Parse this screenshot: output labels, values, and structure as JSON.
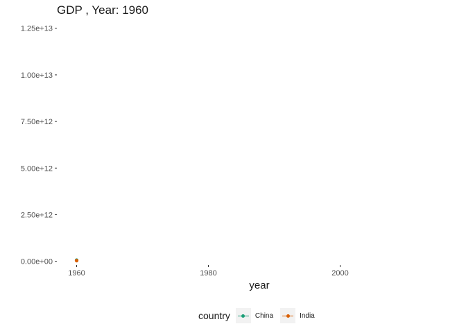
{
  "chart_data": {
    "type": "line",
    "title": "GDP , Year: 1960",
    "xlabel": "year",
    "ylabel": "",
    "xlim": [
      1957,
      2017
    ],
    "ylim": [
      -200000000000,
      12900000000000
    ],
    "x_ticks": [
      1960,
      1980,
      2000
    ],
    "x_tick_labels": [
      "1960",
      "1980",
      "2000"
    ],
    "y_ticks": [
      0,
      2500000000000,
      5000000000000,
      7500000000000,
      10000000000000,
      12500000000000
    ],
    "y_tick_labels": [
      "0.00e+00",
      "2.50e+12",
      "5.00e+12",
      "7.50e+12",
      "1.00e+13",
      "1.25e+13"
    ],
    "grid": false,
    "legend": {
      "title": "country",
      "position": "bottom"
    },
    "series": [
      {
        "name": "China",
        "color": "#1b9e77",
        "points": [
          {
            "x": 1960,
            "y": 59700000000
          }
        ]
      },
      {
        "name": "India",
        "color": "#d95f02",
        "points": [
          {
            "x": 1960,
            "y": 37000000000
          }
        ]
      }
    ]
  }
}
